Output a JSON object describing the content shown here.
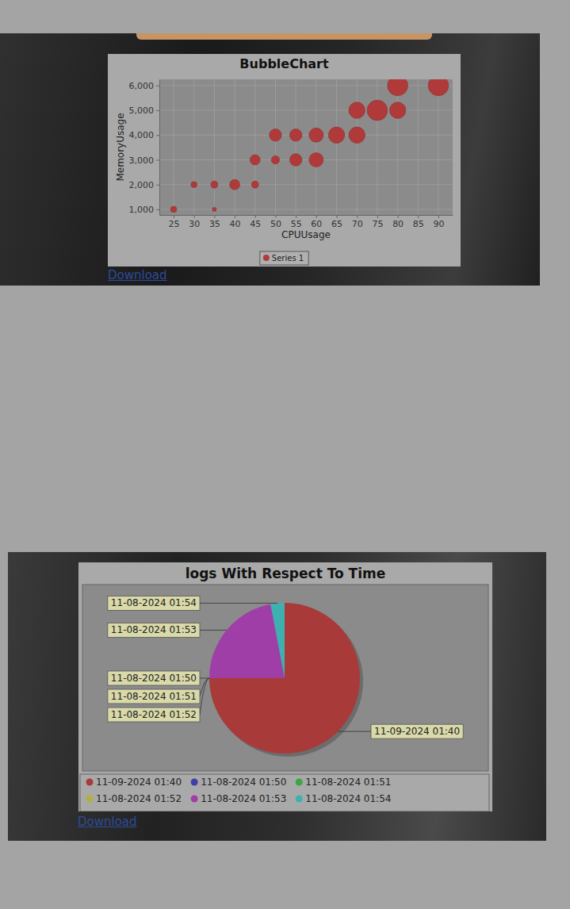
{
  "chart_data": [
    {
      "type": "bubble",
      "title": "BubbleChart",
      "x_label": "CPUUsage",
      "y_label": "MemoryUsage",
      "x": [
        25,
        30,
        35,
        35,
        40,
        45,
        45,
        50,
        50,
        55,
        55,
        60,
        60,
        65,
        70,
        70,
        75,
        80,
        80,
        90
      ],
      "series": [
        {
          "name": "Series 1",
          "color": "#b03a3a",
          "values": [
            1000,
            2000,
            2000,
            1000,
            2000,
            2000,
            3000,
            3000,
            4000,
            4000,
            3000,
            4000,
            3000,
            4000,
            4000,
            5000,
            5000,
            5000,
            6000,
            6000
          ],
          "sizes": [
            1.5,
            1.5,
            1.75,
            1,
            2.5,
            1.75,
            2.5,
            2,
            3,
            3,
            3,
            3.5,
            3.5,
            4,
            4,
            4,
            5,
            4,
            5,
            5
          ]
        }
      ],
      "xlim": [
        21.5,
        93.5
      ],
      "xticks": [
        25,
        30,
        35,
        40,
        45,
        50,
        55,
        60,
        65,
        70,
        75,
        80,
        85,
        90
      ],
      "ylim": [
        775,
        6250
      ],
      "yticks": [
        {
          "value": 1000,
          "label": "1,000"
        },
        {
          "value": 2000,
          "label": "2,000"
        },
        {
          "value": 3000,
          "label": "3,000"
        },
        {
          "value": 4000,
          "label": "4,000"
        },
        {
          "value": 5000,
          "label": "5,000"
        },
        {
          "value": 6000,
          "label": "6,000"
        }
      ],
      "grid": true,
      "legend": "bottom"
    },
    {
      "type": "pie",
      "title": "logs With Respect To Time",
      "categories": [
        "11-09-2024 01:40",
        "11-08-2024 01:50",
        "11-08-2024 01:51",
        "11-08-2024 01:52",
        "11-08-2024 01:53",
        "11-08-2024 01:54"
      ],
      "values": [
        75,
        0,
        0,
        0,
        22,
        3
      ],
      "colors": [
        "#a83a3a",
        "#3f3fa6",
        "#3fa63f",
        "#b0b03f",
        "#a03ea8",
        "#3fb0b0"
      ],
      "legend": "bottom"
    }
  ],
  "download_links": [
    "Download",
    "Download"
  ]
}
